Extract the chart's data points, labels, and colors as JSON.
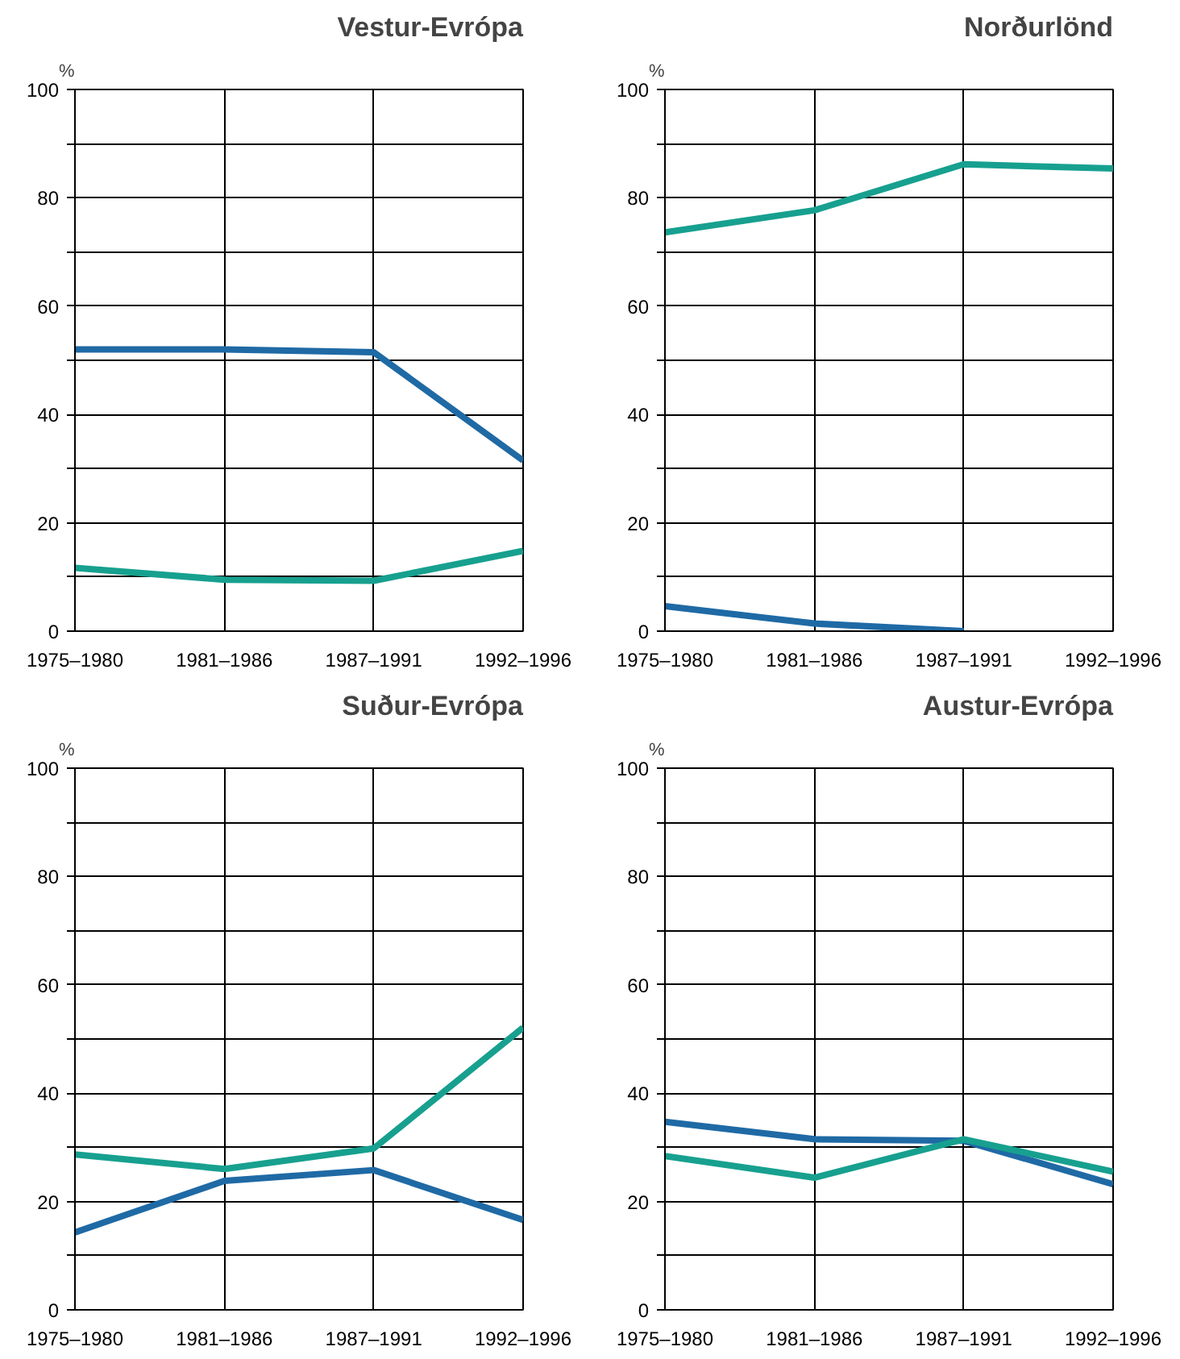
{
  "chart_data": [
    {
      "type": "line",
      "title": "Vestur-Evrópa",
      "ylabel": "%",
      "categories": [
        "1975–1980",
        "1981–1986",
        "1987–1991",
        "1992–1996"
      ],
      "ylim": [
        0,
        100
      ],
      "yticks": [
        0,
        {
          "value": 10,
          "label": null
        },
        20,
        {
          "value": 30,
          "label": null
        },
        40,
        {
          "value": 50,
          "label": null
        },
        60,
        {
          "value": 70,
          "label": null
        },
        80,
        {
          "value": 90,
          "label": null
        },
        100
      ],
      "grid": true,
      "line_style": "solid",
      "marker": "none",
      "series": [
        {
          "color": "#1f6aa5",
          "values": [
            52,
            52,
            51.5,
            31.5
          ]
        },
        {
          "color": "#17a08f",
          "values": [
            11.7,
            9.5,
            9.3,
            14.8
          ]
        }
      ]
    },
    {
      "type": "line",
      "title": "Norðurlönd",
      "ylabel": "%",
      "categories": [
        "1975–1980",
        "1981–1986",
        "1987–1991",
        "1992–1996"
      ],
      "ylim": [
        0,
        100
      ],
      "yticks": [
        0,
        {
          "value": 10,
          "label": null
        },
        20,
        {
          "value": 30,
          "label": null
        },
        40,
        {
          "value": 50,
          "label": null
        },
        60,
        {
          "value": 70,
          "label": null
        },
        80,
        {
          "value": 90,
          "label": null
        },
        100
      ],
      "grid": true,
      "line_style": "solid",
      "marker": "none",
      "series": [
        {
          "color": "#1f6aa5",
          "values": [
            4.6,
            1.4,
            0,
            null
          ]
        },
        {
          "color": "#17a08f",
          "values": [
            73.6,
            77.7,
            86.2,
            85.4
          ]
        }
      ]
    },
    {
      "type": "line",
      "title": "Suður-Evrópa",
      "ylabel": "%",
      "categories": [
        "1975–1980",
        "1981–1986",
        "1987–1991",
        "1992–1996"
      ],
      "ylim": [
        0,
        100
      ],
      "yticks": [
        0,
        {
          "value": 10,
          "label": null
        },
        20,
        {
          "value": 30,
          "label": null
        },
        40,
        {
          "value": 50,
          "label": null
        },
        60,
        {
          "value": 70,
          "label": null
        },
        80,
        {
          "value": 90,
          "label": null
        },
        100
      ],
      "grid": true,
      "line_style": "solid",
      "marker": "none",
      "series": [
        {
          "color": "#1f6aa5",
          "values": [
            14.3,
            23.8,
            25.8,
            16.6
          ]
        },
        {
          "color": "#17a08f",
          "values": [
            28.7,
            26,
            29.8,
            52.1
          ]
        }
      ]
    },
    {
      "type": "line",
      "title": "Austur-Evrópa",
      "ylabel": "%",
      "categories": [
        "1975–1980",
        "1981–1986",
        "1987–1991",
        "1992–1996"
      ],
      "ylim": [
        0,
        100
      ],
      "yticks": [
        0,
        {
          "value": 10,
          "label": null
        },
        20,
        {
          "value": 30,
          "label": null
        },
        40,
        {
          "value": 50,
          "label": null
        },
        60,
        {
          "value": 70,
          "label": null
        },
        80,
        {
          "value": 90,
          "label": null
        },
        100
      ],
      "grid": true,
      "line_style": "solid",
      "marker": "none",
      "series": [
        {
          "color": "#1f6aa5",
          "values": [
            34.7,
            31.5,
            31.2,
            23.2
          ]
        },
        {
          "color": "#17a08f",
          "values": [
            28.4,
            24.4,
            31.5,
            25.5
          ]
        }
      ]
    }
  ]
}
